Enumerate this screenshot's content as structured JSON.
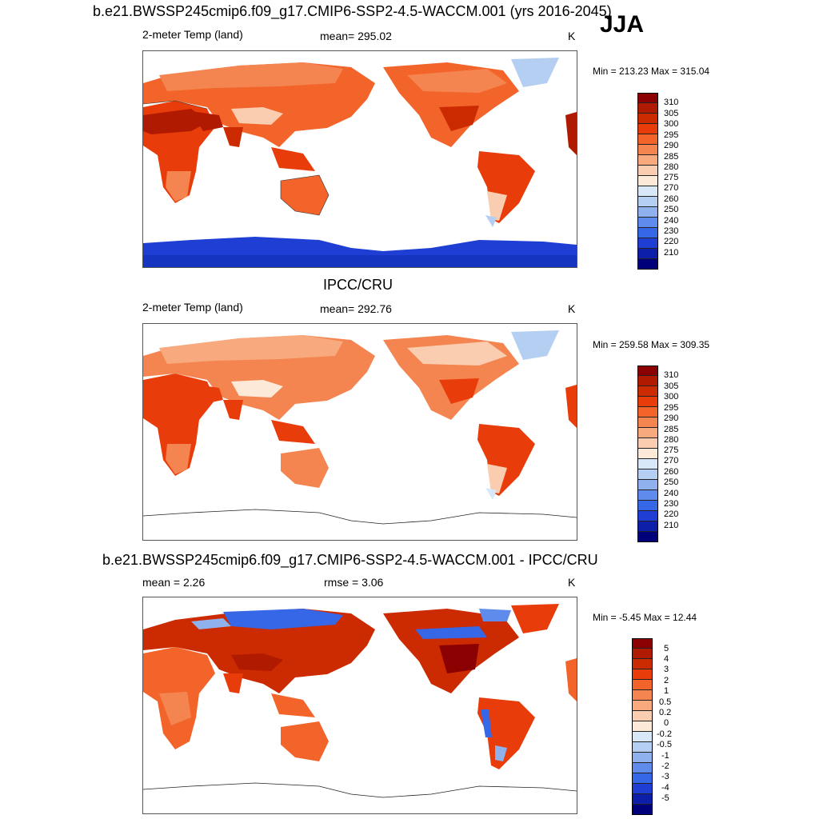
{
  "season": "JJA",
  "panels": [
    {
      "title": "b.e21.BWSSP245cmip6.f09_g17.CMIP6-SSP2-4.5-WACCM.001 (yrs 2016-2045)",
      "left_label": "2-meter Temp (land)",
      "center_label": "mean= 295.02",
      "units": "K",
      "minmax": "Min = 213.23 Max = 315.04",
      "ticks": [
        "310",
        "305",
        "300",
        "295",
        "290",
        "285",
        "280",
        "275",
        "270",
        "260",
        "250",
        "240",
        "230",
        "220",
        "210"
      ]
    },
    {
      "title": "IPCC/CRU",
      "left_label": "2-meter Temp (land)",
      "center_label": "mean= 292.76",
      "units": "K",
      "minmax": "Min = 259.58 Max = 309.35",
      "ticks": [
        "310",
        "305",
        "300",
        "295",
        "290",
        "285",
        "280",
        "275",
        "270",
        "260",
        "250",
        "240",
        "230",
        "220",
        "210"
      ]
    },
    {
      "title": "b.e21.BWSSP245cmip6.f09_g17.CMIP6-SSP2-4.5-WACCM.001 - IPCC/CRU",
      "left_label": "mean =   2.26",
      "center_label": "rmse =   3.06",
      "units": "K",
      "minmax": "Min =  -5.45 Max =  12.44",
      "ticks": [
        "5",
        "4",
        "3",
        "2",
        "1",
        "0.5",
        "0.2",
        "0",
        "-0.2",
        "-0.5",
        "-1",
        "-2",
        "-3",
        "-4",
        "-5"
      ]
    }
  ],
  "colors": {
    "abs_scale": [
      "#8b0000",
      "#b01a00",
      "#cc2a00",
      "#e83c0a",
      "#f2642a",
      "#f58550",
      "#f8a97d",
      "#fbcdb0",
      "#fde9d8",
      "#d8e8f8",
      "#b5cff2",
      "#8fb2ee",
      "#5f8cec",
      "#3567e6",
      "#1f3fd4",
      "#0d1ea8",
      "#00007a"
    ],
    "diff_scale": [
      "#8b0000",
      "#b01a00",
      "#cc2a00",
      "#e83c0a",
      "#f2642a",
      "#f58550",
      "#f8a97d",
      "#fbcdb0",
      "#fde9d8",
      "#d8e8f8",
      "#b5cff2",
      "#8fb2ee",
      "#5f8cec",
      "#3567e6",
      "#1f3fd4",
      "#0d1ea8",
      "#00007a"
    ]
  }
}
